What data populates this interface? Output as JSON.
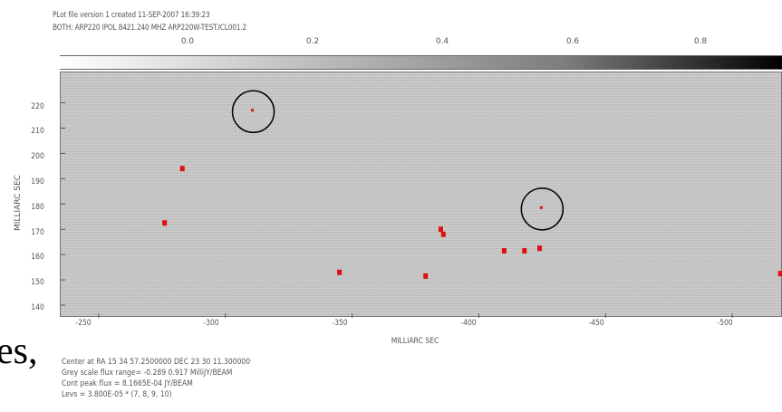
{
  "header": {
    "line1": "PLot file version 1 created 11-SEP-2007 16:39:23",
    "line2": "BOTH: ARP220  IPOL  8421.240 MHZ  ARP220W-TEST.ICL001.2"
  },
  "colorbar": {
    "ticks": [
      "0.0",
      "0.2",
      "0.4",
      "0.6",
      "0.8"
    ],
    "colors": [
      "#ffffff",
      "#000000"
    ]
  },
  "plot": {
    "ylabel": "MILLIARC SEC",
    "xlabel": "MILLIARC SEC",
    "yticks": [
      "220",
      "210",
      "200",
      "190",
      "180",
      "170",
      "160",
      "150",
      "140"
    ],
    "xticks": [
      "-250",
      "-300",
      "-350",
      "-400",
      "-450",
      "-500"
    ],
    "xlim": [
      -235,
      -520
    ],
    "ylim": [
      135,
      232
    ],
    "background_color": "#cbcbcb",
    "marker_color": "#dd1111",
    "circle_color": "#000000",
    "sources": [
      {
        "x": -311,
        "y": 216.5,
        "circled": true
      },
      {
        "x": -283,
        "y": 194
      },
      {
        "x": -276,
        "y": 172.5
      },
      {
        "x": -345,
        "y": 153
      },
      {
        "x": -379,
        "y": 151.5
      },
      {
        "x": -385,
        "y": 170
      },
      {
        "x": -386,
        "y": 168
      },
      {
        "x": -410,
        "y": 161.5
      },
      {
        "x": -418,
        "y": 161.5
      },
      {
        "x": -424,
        "y": 162.5
      },
      {
        "x": -425,
        "y": 178,
        "circled": true
      },
      {
        "x": -519,
        "y": 152.5
      }
    ]
  },
  "footer": {
    "line1": "Center at RA 15 34 57.2500000  DEC 23 30 11.300000",
    "line2": "Grey scale flux range= -0.289 0.917 MilliJY/BEAM",
    "line3": "Cont peak flux =  8.1665E-04 JY/BEAM",
    "line4": "Levs = 3.800E-05 * (7, 8, 9, 10)"
  },
  "slide_text": "es,"
}
